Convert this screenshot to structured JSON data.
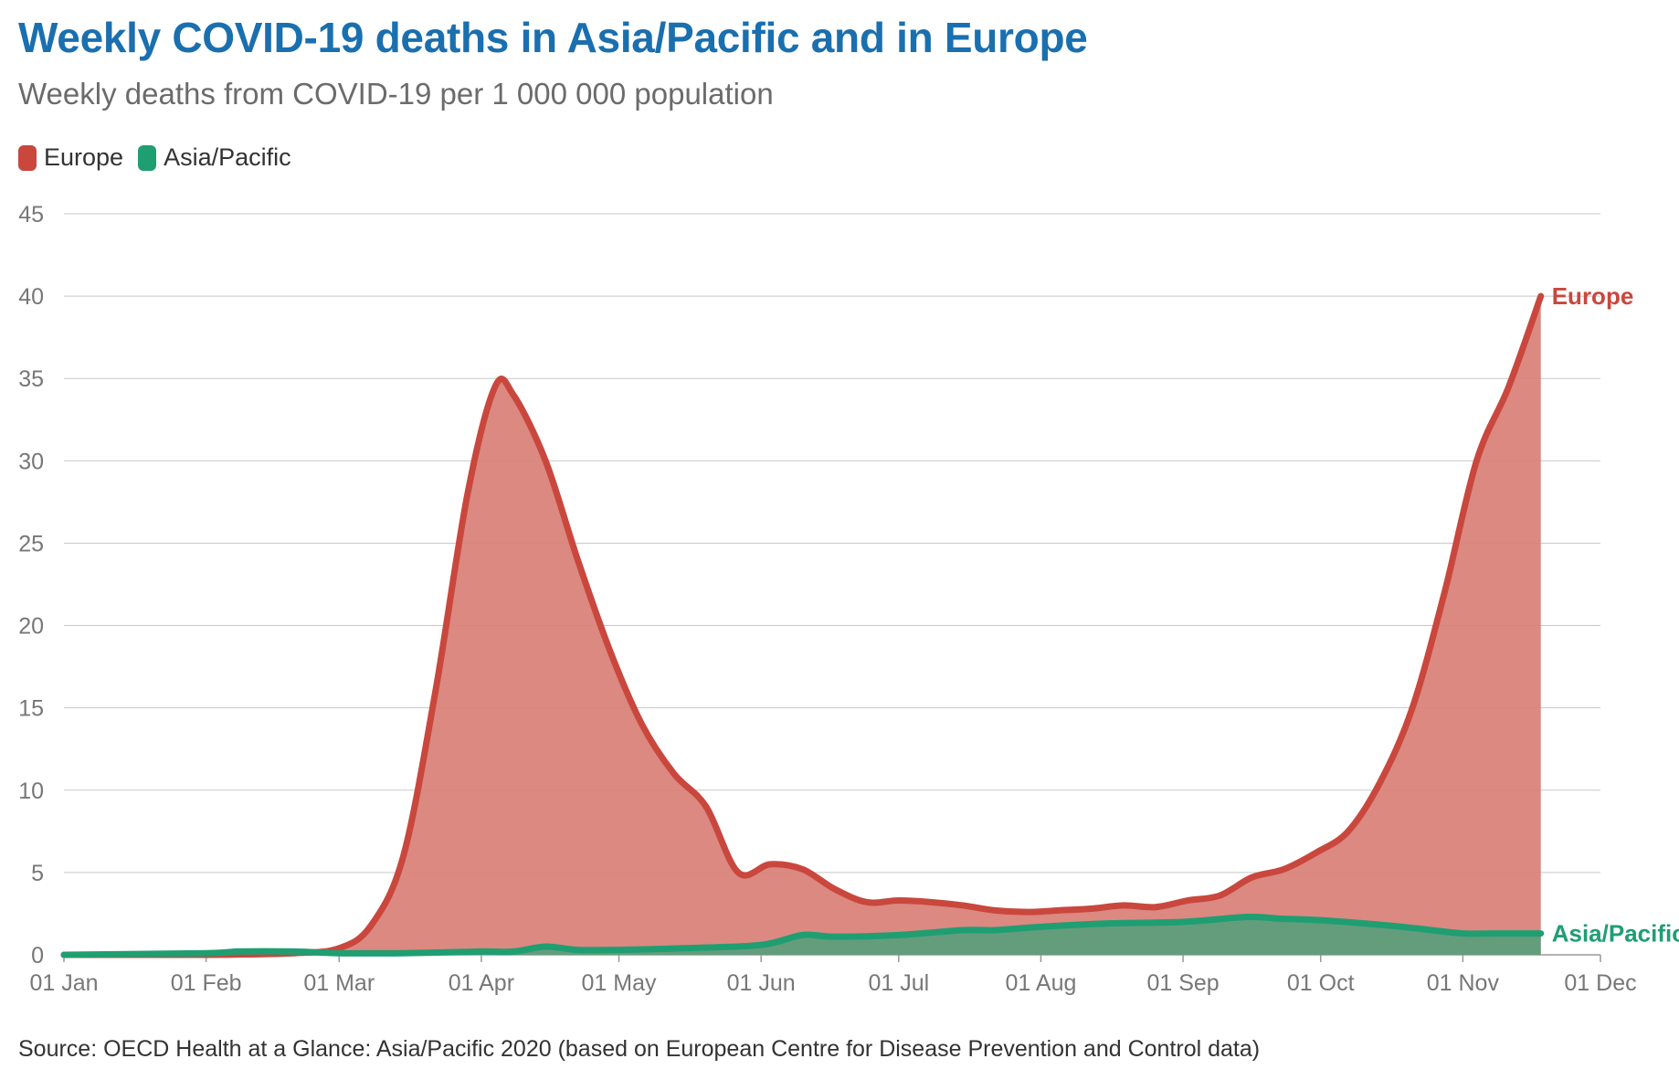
{
  "title": "Weekly COVID-19 deaths in Asia/Pacific and in Europe",
  "subtitle": "Weekly deaths from COVID-19 per 1 000 000 population",
  "source": "Source: OECD Health at a Glance: Asia/Pacific 2020 (based on European Centre for Disease Prevention and Control data)",
  "colors": {
    "europe": "#c9473d",
    "europe_fill": "#d9837a",
    "asia": "#1f9e72",
    "asia_fill": "#5a9e7c",
    "title": "#1a6faf"
  },
  "legend": [
    {
      "label": "Europe",
      "color": "#c9473d"
    },
    {
      "label": "Asia/Pacific",
      "color": "#1f9e72"
    }
  ],
  "chart_data": {
    "type": "area",
    "x_ticks": [
      "01 Jan",
      "01 Feb",
      "01 Mar",
      "01 Apr",
      "01 May",
      "01 Jun",
      "01 Jul",
      "01 Aug",
      "01 Sep",
      "01 Oct",
      "01 Nov",
      "01 Dec"
    ],
    "y_ticks": [
      0,
      5,
      10,
      15,
      20,
      25,
      30,
      35,
      40,
      45
    ],
    "ylim": [
      0,
      45
    ],
    "xlim": [
      "2020-01-01",
      "2020-12-01"
    ],
    "grid": true,
    "legend_position": "top-left",
    "series": [
      {
        "name": "Europe",
        "end_label": "Europe",
        "color": "#c9473d",
        "points": [
          [
            "2020-01-01",
            0
          ],
          [
            "2020-02-01",
            0
          ],
          [
            "2020-02-20",
            0.1
          ],
          [
            "2020-03-01",
            0.4
          ],
          [
            "2020-03-08",
            1.8
          ],
          [
            "2020-03-15",
            6
          ],
          [
            "2020-03-22",
            16
          ],
          [
            "2020-03-29",
            28
          ],
          [
            "2020-04-04",
            34.5
          ],
          [
            "2020-04-08",
            34
          ],
          [
            "2020-04-15",
            30
          ],
          [
            "2020-04-22",
            24
          ],
          [
            "2020-04-29",
            18.5
          ],
          [
            "2020-05-06",
            14
          ],
          [
            "2020-05-13",
            11
          ],
          [
            "2020-05-20",
            9
          ],
          [
            "2020-05-27",
            5
          ],
          [
            "2020-06-03",
            5.5
          ],
          [
            "2020-06-10",
            5.2
          ],
          [
            "2020-06-17",
            4
          ],
          [
            "2020-06-24",
            3.2
          ],
          [
            "2020-07-01",
            3.3
          ],
          [
            "2020-07-08",
            3.2
          ],
          [
            "2020-07-15",
            3
          ],
          [
            "2020-07-22",
            2.7
          ],
          [
            "2020-07-29",
            2.6
          ],
          [
            "2020-08-05",
            2.7
          ],
          [
            "2020-08-12",
            2.8
          ],
          [
            "2020-08-19",
            3
          ],
          [
            "2020-08-26",
            2.9
          ],
          [
            "2020-09-02",
            3.3
          ],
          [
            "2020-09-09",
            3.6
          ],
          [
            "2020-09-16",
            4.7
          ],
          [
            "2020-09-23",
            5.2
          ],
          [
            "2020-09-30",
            6.2
          ],
          [
            "2020-10-07",
            7.5
          ],
          [
            "2020-10-14",
            10.5
          ],
          [
            "2020-10-21",
            15
          ],
          [
            "2020-10-28",
            22
          ],
          [
            "2020-11-04",
            30
          ],
          [
            "2020-11-11",
            34.5
          ],
          [
            "2020-11-18",
            40
          ]
        ]
      },
      {
        "name": "Asia/Pacific",
        "end_label": "Asia/Pacific",
        "color": "#1f9e72",
        "points": [
          [
            "2020-01-01",
            0
          ],
          [
            "2020-02-01",
            0.1
          ],
          [
            "2020-02-08",
            0.2
          ],
          [
            "2020-02-20",
            0.2
          ],
          [
            "2020-03-01",
            0.1
          ],
          [
            "2020-03-15",
            0.1
          ],
          [
            "2020-04-01",
            0.2
          ],
          [
            "2020-04-08",
            0.2
          ],
          [
            "2020-04-15",
            0.5
          ],
          [
            "2020-04-22",
            0.3
          ],
          [
            "2020-05-01",
            0.3
          ],
          [
            "2020-05-15",
            0.4
          ],
          [
            "2020-06-01",
            0.6
          ],
          [
            "2020-06-10",
            1.2
          ],
          [
            "2020-06-17",
            1.1
          ],
          [
            "2020-07-01",
            1.2
          ],
          [
            "2020-07-15",
            1.5
          ],
          [
            "2020-07-22",
            1.5
          ],
          [
            "2020-08-01",
            1.7
          ],
          [
            "2020-08-15",
            1.9
          ],
          [
            "2020-09-01",
            2
          ],
          [
            "2020-09-15",
            2.3
          ],
          [
            "2020-09-22",
            2.2
          ],
          [
            "2020-10-01",
            2.1
          ],
          [
            "2020-10-15",
            1.8
          ],
          [
            "2020-10-22",
            1.6
          ],
          [
            "2020-11-01",
            1.3
          ],
          [
            "2020-11-08",
            1.3
          ],
          [
            "2020-11-18",
            1.3
          ]
        ]
      }
    ]
  }
}
